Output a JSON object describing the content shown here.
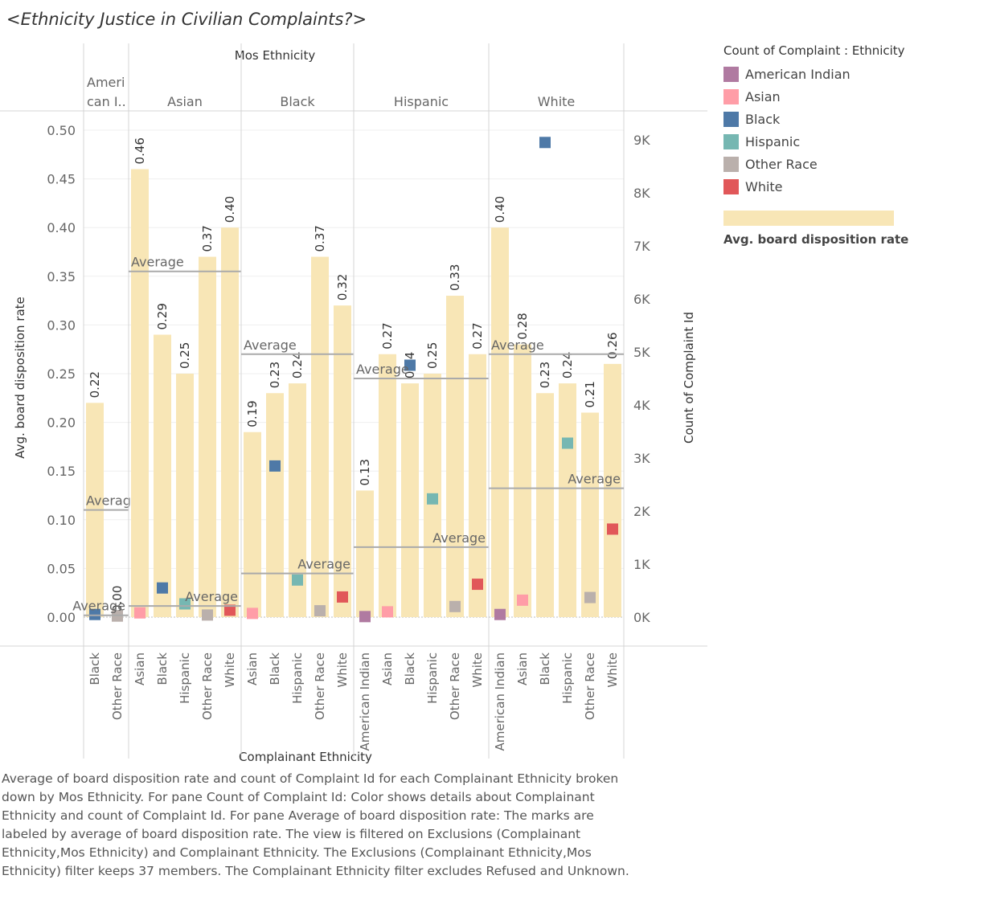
{
  "title": "<Ethnicity Justice  in Civilian Complaints?>",
  "legend": {
    "title": "Count of Complaint : Ethnicity",
    "items": [
      {
        "label": "American Indian",
        "color": "#b07aa1"
      },
      {
        "label": "Asian",
        "color": "#ff9da7"
      },
      {
        "label": "Black",
        "color": "#4e79a7"
      },
      {
        "label": "Hispanic",
        "color": "#76b7b2"
      },
      {
        "label": "Other Race",
        "color": "#bab0ac"
      },
      {
        "label": "White",
        "color": "#e15759"
      }
    ],
    "band_label": "Avg. board disposition rate",
    "band_color": "#f8e6b6"
  },
  "chart_data": {
    "type": "bar",
    "column_header": "Mos Ethnicity",
    "xlabel": "Complainant Ethnicity",
    "ylabel": "Avg. board disposition rate",
    "y2label": "Count of Complaint Id",
    "ylim": [
      0,
      0.5
    ],
    "y_ticks": [
      "0.00",
      "0.05",
      "0.10",
      "0.15",
      "0.20",
      "0.25",
      "0.30",
      "0.35",
      "0.40",
      "0.45",
      "0.50"
    ],
    "y2lim": [
      0,
      9000
    ],
    "y2_ticks": [
      "0K",
      "1K",
      "2K",
      "3K",
      "4K",
      "5K",
      "6K",
      "7K",
      "8K",
      "9K"
    ],
    "reference_label": "Average",
    "panes": [
      {
        "mos": "Ameri can I..",
        "bars": [
          {
            "complainant": "Black",
            "rate": 0.22,
            "rate_label": "0.22",
            "count": 50
          },
          {
            "complainant": "Other Race",
            "rate": 0.0,
            "rate_label": "0.00",
            "count": 20
          }
        ],
        "rate_avg": 0.11,
        "count_avg": 35
      },
      {
        "mos": "Asian",
        "bars": [
          {
            "complainant": "Asian",
            "rate": 0.46,
            "rate_label": "0.46",
            "count": 80
          },
          {
            "complainant": "Black",
            "rate": 0.29,
            "rate_label": "0.29",
            "count": 550
          },
          {
            "complainant": "Hispanic",
            "rate": 0.25,
            "rate_label": "0.25",
            "count": 250
          },
          {
            "complainant": "Other Race",
            "rate": 0.37,
            "rate_label": "0.37",
            "count": 40
          },
          {
            "complainant": "White",
            "rate": 0.4,
            "rate_label": "0.40",
            "count": 130
          }
        ],
        "rate_avg": 0.355,
        "count_avg": 210
      },
      {
        "mos": "Black",
        "bars": [
          {
            "complainant": "Asian",
            "rate": 0.19,
            "rate_label": "0.19",
            "count": 70
          },
          {
            "complainant": "Black",
            "rate": 0.23,
            "rate_label": "0.23",
            "count": 2850
          },
          {
            "complainant": "Hispanic",
            "rate": 0.24,
            "rate_label": "0.24",
            "count": 700
          },
          {
            "complainant": "Other Race",
            "rate": 0.37,
            "rate_label": "0.37",
            "count": 120
          },
          {
            "complainant": "White",
            "rate": 0.32,
            "rate_label": "0.32",
            "count": 380
          }
        ],
        "rate_avg": 0.27,
        "count_avg": 824
      },
      {
        "mos": "Hispanic",
        "bars": [
          {
            "complainant": "American Indian",
            "rate": 0.13,
            "rate_label": "0.13",
            "count": 10
          },
          {
            "complainant": "Asian",
            "rate": 0.27,
            "rate_label": "0.27",
            "count": 100
          },
          {
            "complainant": "Black",
            "rate": 0.24,
            "rate_label": "0.24",
            "count": 4750
          },
          {
            "complainant": "Hispanic",
            "rate": 0.25,
            "rate_label": "0.25",
            "count": 2230
          },
          {
            "complainant": "Other Race",
            "rate": 0.33,
            "rate_label": "0.33",
            "count": 200
          },
          {
            "complainant": "White",
            "rate": 0.27,
            "rate_label": "0.27",
            "count": 620
          }
        ],
        "rate_avg": 0.245,
        "count_avg": 1320
      },
      {
        "mos": "White",
        "bars": [
          {
            "complainant": "American Indian",
            "rate": 0.4,
            "rate_label": "0.40",
            "count": 50
          },
          {
            "complainant": "Asian",
            "rate": 0.28,
            "rate_label": "0.28",
            "count": 320
          },
          {
            "complainant": "Black",
            "rate": 0.23,
            "rate_label": "0.23",
            "count": 8950
          },
          {
            "complainant": "Hispanic",
            "rate": 0.24,
            "rate_label": "0.24",
            "count": 3280
          },
          {
            "complainant": "Other Race",
            "rate": 0.21,
            "rate_label": "0.21",
            "count": 370
          },
          {
            "complainant": "White",
            "rate": 0.26,
            "rate_label": "0.26",
            "count": 1660
          }
        ],
        "rate_avg": 0.27,
        "count_avg": 2430
      }
    ]
  },
  "caption": "Average of board disposition rate and count of Complaint Id for each Complainant Ethnicity broken down by Mos Ethnicity.  For pane Count of Complaint Id:  Color shows details about Complainant Ethnicity and count of Complaint Id.  For pane Average of board disposition rate:  The marks are labeled by average of board disposition rate. The view is filtered on Exclusions (Complainant Ethnicity,Mos Ethnicity) and Complainant Ethnicity. The Exclusions (Complainant Ethnicity,Mos Ethnicity) filter keeps 37 members. The Complainant Ethnicity filter excludes Refused and Unknown."
}
